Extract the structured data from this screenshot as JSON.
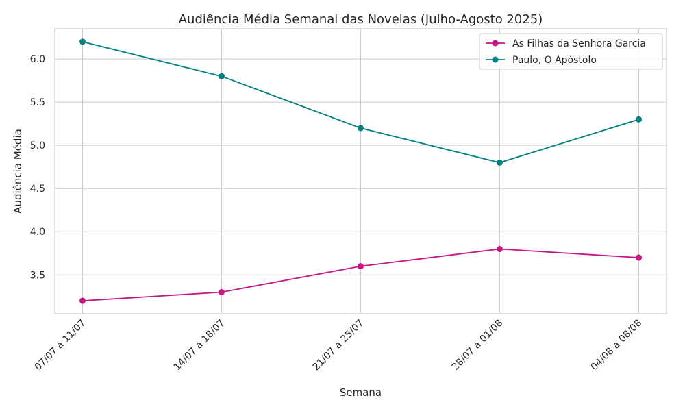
{
  "chart_data": {
    "type": "line",
    "title": "Audiência Média Semanal das Novelas (Julho-Agosto 2025)",
    "xlabel": "Semana",
    "ylabel": "Audiência Média",
    "categories": [
      "07/07 a 11/07",
      "14/07 a 18/07",
      "21/07 a 25/07",
      "28/07 a 01/08",
      "04/08 a 08/08"
    ],
    "ylim": [
      3.05,
      6.35
    ],
    "yticks": [
      3.5,
      4.0,
      4.5,
      5.0,
      5.5,
      6.0
    ],
    "ytick_labels": [
      "3.5",
      "4.0",
      "4.5",
      "5.0",
      "5.5",
      "6.0"
    ],
    "grid": true,
    "legend_position": "top-right",
    "series": [
      {
        "name": "As Filhas da Senhora Garcia",
        "color": "#c71585",
        "marker": "circle",
        "values": [
          3.2,
          3.3,
          3.6,
          3.8,
          3.7
        ]
      },
      {
        "name": "Paulo, O Apóstolo",
        "color": "#008080",
        "marker": "circle",
        "values": [
          6.2,
          5.8,
          5.2,
          4.8,
          5.3
        ]
      }
    ]
  }
}
